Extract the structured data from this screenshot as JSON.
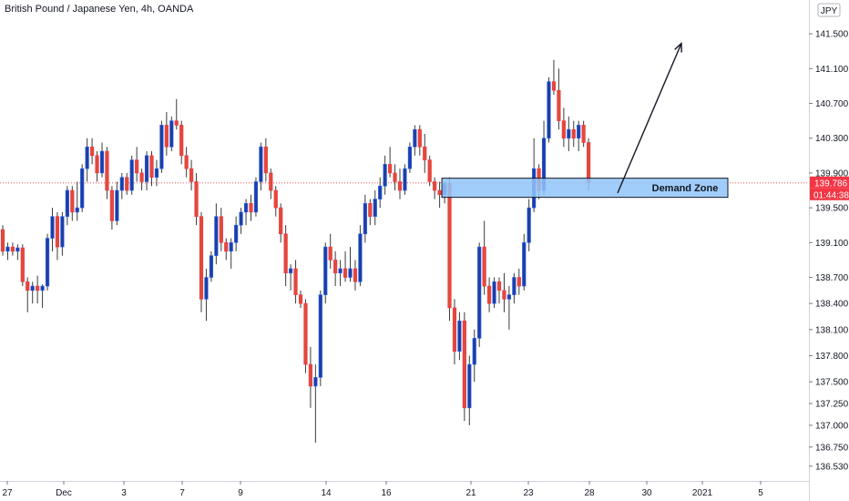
{
  "chart_title": "British Pound / Japanese Yen, 4h, OANDA",
  "currency_label": "JPY",
  "last_price_label": "139.786",
  "countdown_label": "01:44:38",
  "colors": {
    "up": "#2962ff",
    "down": "#f23645",
    "up_body": "#1e3f9e",
    "down_body": "#e04a3a",
    "wick": "#3b3b3b",
    "zone_fill": "#90c4f9",
    "zone_stroke": "#131722",
    "price_line": "#f23645",
    "badge": "#f23645",
    "axis_text": "#131722"
  },
  "annotations": {
    "demand_zone_label": "Demand Zone",
    "demand_zone_low": 139.62,
    "demand_zone_high": 139.84,
    "arrow": {
      "from_x": "Dec 28 12:00",
      "from_price": 139.67,
      "to_x": "Dec 30 12:00",
      "to_price": 141.39
    }
  },
  "chart_data": {
    "type": "candlestick",
    "title": "British Pound / Japanese Yen, 4h, OANDA",
    "xlabel": "",
    "ylabel": "",
    "ylim": [
      136.36,
      141.7
    ],
    "grid": false,
    "y_ticks": [
      "141.500",
      "141.100",
      "140.700",
      "140.300",
      "139.900",
      "139.500",
      "139.100",
      "138.700",
      "138.400",
      "138.100",
      "137.800",
      "137.500",
      "137.250",
      "137.000",
      "136.750",
      "136.530"
    ],
    "y_tick_values": [
      141.5,
      141.1,
      140.7,
      140.3,
      139.9,
      139.5,
      139.1,
      138.7,
      138.4,
      138.1,
      137.8,
      137.5,
      137.25,
      137.0,
      136.75,
      136.53
    ],
    "x_ticks": [
      {
        "label": "27",
        "date": "Nov 27"
      },
      {
        "label": "Dec",
        "date": "Dec 1"
      },
      {
        "label": "3",
        "date": "Dec 3"
      },
      {
        "label": "7",
        "date": "Dec 7"
      },
      {
        "label": "9",
        "date": "Dec 9"
      },
      {
        "label": "14",
        "date": "Dec 14"
      },
      {
        "label": "16",
        "date": "Dec 16"
      },
      {
        "label": "21",
        "date": "Dec 21"
      },
      {
        "label": "23",
        "date": "Dec 23"
      },
      {
        "label": "28",
        "date": "Dec 28"
      },
      {
        "label": "30",
        "date": "Dec 30"
      },
      {
        "label": "2021",
        "date": "Jan 1"
      },
      {
        "label": "5",
        "date": "Jan 5"
      }
    ],
    "last_price": 139.786,
    "candles": [
      [
        139.25,
        139.3,
        138.95,
        139.0
      ],
      [
        139.0,
        139.1,
        138.9,
        139.05
      ],
      [
        139.05,
        139.1,
        138.95,
        139.0
      ],
      [
        139.0,
        139.08,
        138.9,
        139.04
      ],
      [
        139.04,
        139.08,
        138.6,
        138.65
      ],
      [
        138.65,
        138.7,
        138.3,
        138.55
      ],
      [
        138.55,
        138.65,
        138.4,
        138.6
      ],
      [
        138.6,
        138.72,
        138.4,
        138.55
      ],
      [
        138.55,
        138.62,
        138.35,
        138.6
      ],
      [
        138.6,
        139.2,
        138.55,
        139.15
      ],
      [
        139.15,
        139.5,
        139.0,
        139.4
      ],
      [
        139.4,
        139.45,
        138.9,
        139.05
      ],
      [
        139.05,
        139.45,
        138.95,
        139.4
      ],
      [
        139.4,
        139.75,
        139.3,
        139.7
      ],
      [
        139.7,
        139.75,
        139.35,
        139.45
      ],
      [
        139.45,
        139.8,
        139.35,
        139.5
      ],
      [
        139.5,
        140.0,
        139.45,
        139.95
      ],
      [
        139.95,
        140.3,
        139.8,
        140.2
      ],
      [
        140.2,
        140.3,
        140.0,
        140.1
      ],
      [
        140.1,
        140.15,
        139.8,
        139.9
      ],
      [
        139.9,
        140.25,
        139.85,
        140.15
      ],
      [
        140.15,
        140.2,
        139.6,
        139.7
      ],
      [
        139.7,
        139.75,
        139.25,
        139.35
      ],
      [
        139.35,
        139.8,
        139.3,
        139.7
      ],
      [
        139.7,
        139.9,
        139.6,
        139.85
      ],
      [
        139.85,
        139.9,
        139.65,
        139.7
      ],
      [
        139.7,
        140.1,
        139.65,
        140.05
      ],
      [
        140.05,
        140.2,
        139.8,
        139.9
      ],
      [
        139.9,
        139.95,
        139.7,
        139.8
      ],
      [
        139.8,
        140.15,
        139.7,
        140.1
      ],
      [
        140.1,
        140.15,
        139.75,
        139.85
      ],
      [
        139.85,
        140.05,
        139.75,
        139.95
      ],
      [
        139.95,
        140.5,
        139.9,
        140.45
      ],
      [
        140.45,
        140.6,
        140.1,
        140.2
      ],
      [
        140.2,
        140.55,
        140.15,
        140.5
      ],
      [
        140.5,
        140.75,
        140.4,
        140.45
      ],
      [
        140.45,
        140.5,
        140.0,
        140.1
      ],
      [
        140.1,
        140.2,
        139.85,
        139.95
      ],
      [
        139.95,
        140.05,
        139.7,
        139.8
      ],
      [
        139.8,
        139.9,
        139.3,
        139.4
      ],
      [
        139.4,
        139.45,
        138.3,
        138.45
      ],
      [
        138.45,
        138.8,
        138.2,
        138.7
      ],
      [
        138.7,
        139.0,
        138.65,
        138.95
      ],
      [
        138.95,
        139.55,
        138.85,
        139.4
      ],
      [
        139.4,
        139.5,
        139.0,
        139.1
      ],
      [
        139.1,
        139.15,
        138.9,
        139.0
      ],
      [
        139.0,
        139.15,
        138.8,
        139.1
      ],
      [
        139.1,
        139.4,
        139.0,
        139.3
      ],
      [
        139.3,
        139.5,
        139.2,
        139.45
      ],
      [
        139.45,
        139.6,
        139.3,
        139.55
      ],
      [
        139.55,
        139.65,
        139.35,
        139.45
      ],
      [
        139.45,
        139.85,
        139.4,
        139.8
      ],
      [
        139.8,
        140.25,
        139.7,
        140.2
      ],
      [
        140.2,
        140.3,
        139.8,
        139.9
      ],
      [
        139.9,
        139.95,
        139.6,
        139.7
      ],
      [
        139.7,
        139.75,
        139.4,
        139.5
      ],
      [
        139.5,
        139.55,
        139.1,
        139.2
      ],
      [
        139.2,
        139.3,
        138.6,
        138.75
      ],
      [
        138.75,
        138.85,
        138.55,
        138.8
      ],
      [
        138.8,
        138.9,
        138.4,
        138.5
      ],
      [
        138.5,
        138.55,
        138.35,
        138.4
      ],
      [
        138.4,
        138.45,
        137.6,
        137.7
      ],
      [
        137.7,
        137.9,
        137.2,
        137.45
      ],
      [
        137.45,
        137.7,
        136.8,
        137.55
      ],
      [
        137.55,
        138.55,
        137.45,
        138.5
      ],
      [
        138.5,
        139.1,
        138.4,
        139.05
      ],
      [
        139.05,
        139.2,
        138.8,
        138.9
      ],
      [
        138.9,
        139.0,
        138.6,
        138.75
      ],
      [
        138.75,
        138.9,
        138.6,
        138.8
      ],
      [
        138.8,
        139.0,
        138.65,
        138.7
      ],
      [
        138.7,
        139.05,
        138.65,
        138.8
      ],
      [
        138.8,
        138.9,
        138.55,
        138.65
      ],
      [
        138.65,
        139.3,
        138.6,
        139.2
      ],
      [
        139.2,
        139.65,
        139.1,
        139.55
      ],
      [
        139.55,
        139.6,
        139.3,
        139.4
      ],
      [
        139.4,
        139.7,
        139.3,
        139.6
      ],
      [
        139.6,
        139.85,
        139.5,
        139.75
      ],
      [
        139.75,
        140.1,
        139.65,
        140.0
      ],
      [
        140.0,
        140.2,
        139.85,
        139.9
      ],
      [
        139.9,
        140.0,
        139.7,
        139.8
      ],
      [
        139.8,
        139.95,
        139.6,
        139.7
      ],
      [
        139.7,
        140.0,
        139.65,
        139.95
      ],
      [
        139.95,
        140.25,
        139.9,
        140.2
      ],
      [
        140.2,
        140.45,
        140.1,
        140.4
      ],
      [
        140.4,
        140.45,
        140.1,
        140.2
      ],
      [
        140.2,
        140.35,
        139.9,
        140.05
      ],
      [
        140.05,
        140.1,
        139.75,
        139.8
      ],
      [
        139.8,
        139.85,
        139.6,
        139.7
      ],
      [
        139.7,
        139.8,
        139.5,
        139.65
      ],
      [
        139.65,
        139.8,
        139.55,
        139.78
      ],
      [
        139.78,
        139.85,
        138.2,
        138.35
      ],
      [
        138.35,
        138.45,
        137.7,
        137.85
      ],
      [
        137.85,
        138.3,
        137.75,
        138.2
      ],
      [
        138.2,
        138.3,
        137.05,
        137.2
      ],
      [
        137.2,
        137.8,
        137.0,
        137.7
      ],
      [
        137.7,
        138.1,
        137.5,
        138.0
      ],
      [
        138.0,
        139.1,
        137.9,
        139.05
      ],
      [
        139.05,
        139.35,
        138.5,
        138.6
      ],
      [
        138.6,
        138.7,
        138.3,
        138.4
      ],
      [
        138.4,
        138.7,
        138.35,
        138.65
      ],
      [
        138.65,
        138.7,
        138.4,
        138.55
      ],
      [
        138.55,
        138.75,
        138.3,
        138.45
      ],
      [
        138.45,
        138.6,
        138.1,
        138.5
      ],
      [
        138.5,
        138.75,
        138.4,
        138.7
      ],
      [
        138.7,
        138.8,
        138.5,
        138.6
      ],
      [
        138.6,
        139.2,
        138.55,
        139.1
      ],
      [
        139.1,
        139.6,
        139.0,
        139.5
      ],
      [
        139.5,
        140.3,
        139.45,
        139.95
      ],
      [
        139.95,
        140.0,
        139.6,
        139.7
      ],
      [
        139.7,
        140.5,
        139.65,
        140.3
      ],
      [
        140.3,
        141.0,
        140.25,
        140.95
      ],
      [
        140.95,
        141.2,
        140.8,
        140.85
      ],
      [
        140.85,
        141.1,
        140.4,
        140.5
      ],
      [
        140.5,
        140.65,
        140.2,
        140.3
      ],
      [
        140.3,
        140.55,
        140.15,
        140.4
      ],
      [
        140.4,
        140.5,
        140.2,
        140.3
      ],
      [
        140.3,
        140.5,
        140.15,
        140.45
      ],
      [
        140.45,
        140.5,
        140.2,
        140.25
      ],
      [
        140.25,
        140.3,
        139.7,
        139.79
      ]
    ]
  }
}
